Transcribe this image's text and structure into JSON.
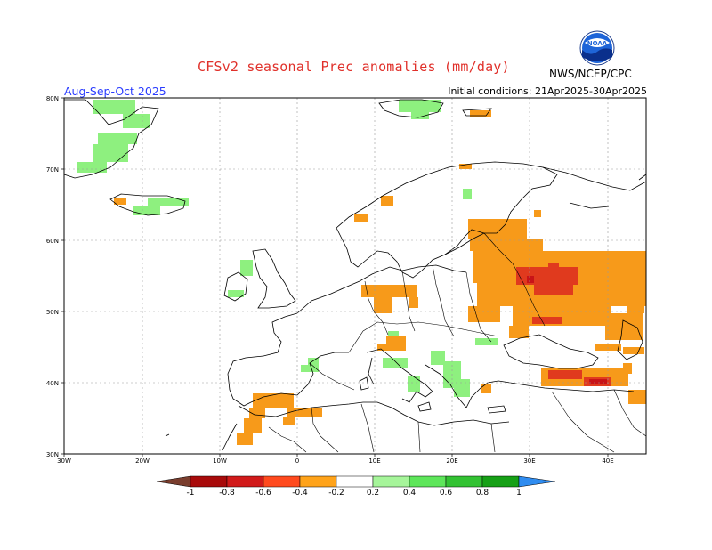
{
  "header": {
    "title": "CFSv2 seasonal Prec anomalies (mm/day)",
    "period": "Aug-Sep-Oct 2025",
    "initial_conditions": "Initial conditions: 21Apr2025-30Apr2025",
    "agency": "NWS/NCEP/CPC",
    "logo_text": "NOAA"
  },
  "map": {
    "lat_labels": [
      "80N",
      "70N",
      "60N",
      "50N",
      "40N",
      "30N"
    ],
    "lon_labels": [
      "30W",
      "20W",
      "10W",
      "0",
      "10E",
      "20E",
      "30E",
      "40E"
    ],
    "colors": {
      "dry_strong": "#e03a1e",
      "dry": "#f79a1a",
      "dry_dark": "#c81418",
      "wet": "#8ef07f",
      "coast": "#000000",
      "grid": "#9a9a9a"
    }
  },
  "colorbar": {
    "labels": [
      "-1",
      "-0.8",
      "-0.6",
      "-0.4",
      "-0.2",
      "0.2",
      "0.4",
      "0.6",
      "0.8",
      "1"
    ],
    "colors": [
      "#7a3e2e",
      "#a80a0a",
      "#d11a1a",
      "#ff4a1e",
      "#ffa31a",
      "#ffffff",
      "#a6f59a",
      "#5ee65a",
      "#32c232",
      "#16a016",
      "#2f8cf0"
    ]
  }
}
